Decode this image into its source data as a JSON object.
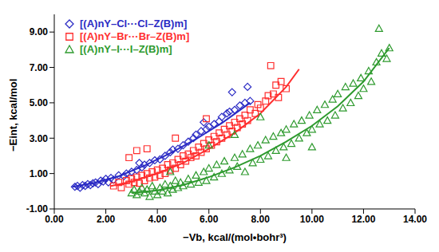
{
  "chart_data": {
    "type": "scatter",
    "xlabel": "−Vb, kcal/(mol•bohr³)",
    "ylabel": "−Eint, kcal/mol",
    "xlim": [
      0,
      14
    ],
    "ylim": [
      -1,
      10
    ],
    "xticks": [
      {
        "value": 0,
        "label": "0.00"
      },
      {
        "value": 2,
        "label": "2.00"
      },
      {
        "value": 4,
        "label": "4.00"
      },
      {
        "value": 6,
        "label": "6.00"
      },
      {
        "value": 8,
        "label": "8.00"
      },
      {
        "value": 10,
        "label": "10.00"
      },
      {
        "value": 12,
        "label": "12.00"
      },
      {
        "value": 14,
        "label": "14.00"
      }
    ],
    "yticks": [
      {
        "value": -1,
        "label": "-1.00"
      },
      {
        "value": 1,
        "label": "1.00"
      },
      {
        "value": 3,
        "label": "3.00"
      },
      {
        "value": 5,
        "label": "5.00"
      },
      {
        "value": 7,
        "label": "7.00"
      },
      {
        "value": 9,
        "label": "9.00"
      }
    ],
    "grid": false,
    "legend": "upper left",
    "series": [
      {
        "name": "[(A)nY–Cl···Cl–Z(B)m]",
        "color": "#2b2bc4",
        "marker": "diamond",
        "x": [
          0.8,
          0.9,
          1.0,
          1.1,
          1.2,
          1.3,
          1.4,
          1.5,
          1.6,
          1.7,
          1.8,
          1.9,
          2.0,
          2.1,
          2.2,
          2.3,
          2.5,
          2.7,
          2.8,
          3.0,
          3.2,
          3.4,
          3.5,
          3.7,
          3.9,
          4.1,
          4.3,
          4.5,
          4.6,
          4.8,
          5.0,
          5.2,
          5.4,
          5.5,
          5.7,
          5.9,
          6.0,
          6.2,
          6.4,
          6.5,
          6.7,
          6.8,
          7.0,
          7.2,
          7.4,
          7.6,
          6.9,
          7.5,
          5.8,
          3.3
        ],
        "values": [
          0.25,
          0.3,
          0.2,
          0.35,
          0.3,
          0.4,
          0.35,
          0.45,
          0.5,
          0.4,
          0.6,
          0.55,
          0.7,
          0.5,
          0.75,
          0.65,
          0.9,
          0.85,
          1.0,
          1.1,
          1.2,
          1.35,
          1.5,
          1.6,
          1.75,
          1.8,
          2.0,
          2.2,
          2.35,
          2.4,
          2.6,
          2.8,
          3.0,
          3.2,
          3.4,
          3.5,
          3.65,
          3.8,
          3.95,
          4.2,
          4.4,
          4.5,
          4.6,
          4.85,
          5.0,
          5.1,
          5.6,
          5.9,
          3.9,
          1.6
        ],
        "trend": {
          "x": [
            0.7,
            1.5,
            2.5,
            3.5,
            4.5,
            5.5,
            6.5,
            7.6
          ],
          "values": [
            0.25,
            0.45,
            0.85,
            1.45,
            2.15,
            2.95,
            3.85,
            5.0
          ]
        }
      },
      {
        "name": "[(A)nY–Br···Br–Z(B)m]",
        "color": "#ff2e2e",
        "marker": "square",
        "x": [
          2.3,
          2.5,
          2.6,
          2.8,
          2.9,
          3.0,
          3.1,
          3.2,
          3.3,
          3.4,
          3.5,
          3.6,
          3.7,
          3.8,
          3.9,
          4.0,
          4.1,
          4.2,
          4.3,
          4.4,
          4.5,
          4.6,
          4.7,
          4.8,
          4.9,
          5.0,
          5.1,
          5.2,
          5.3,
          5.4,
          5.5,
          5.6,
          5.7,
          5.8,
          5.9,
          6.0,
          6.1,
          6.2,
          6.3,
          6.4,
          6.5,
          6.6,
          6.7,
          6.8,
          6.9,
          7.0,
          7.1,
          7.2,
          7.3,
          7.4,
          7.5,
          7.6,
          7.8,
          7.9,
          8.0,
          8.2,
          8.3,
          8.5,
          8.6,
          8.7,
          8.8,
          9.0,
          8.4,
          3.6,
          3.2,
          2.9,
          4.7,
          5.9
        ],
        "values": [
          0.3,
          0.5,
          0.2,
          0.6,
          0.4,
          0.7,
          0.5,
          0.8,
          0.45,
          0.9,
          0.6,
          1.0,
          0.75,
          1.1,
          0.8,
          1.2,
          0.9,
          1.3,
          1.0,
          1.5,
          1.2,
          1.6,
          1.3,
          1.8,
          1.5,
          2.0,
          1.7,
          2.1,
          1.9,
          2.3,
          2.0,
          2.5,
          2.2,
          2.7,
          2.4,
          2.9,
          2.6,
          3.1,
          2.8,
          3.3,
          3.0,
          3.5,
          3.2,
          3.7,
          3.4,
          3.9,
          3.6,
          4.1,
          3.8,
          4.3,
          4.0,
          4.6,
          4.4,
          4.9,
          4.7,
          5.1,
          5.4,
          5.5,
          6.0,
          5.3,
          6.2,
          5.8,
          7.1,
          2.4,
          2.3,
          1.9,
          3.0,
          4.1
        ],
        "trend": {
          "x": [
            2.2,
            3,
            4,
            5,
            6,
            7,
            8,
            9,
            9.5
          ],
          "values": [
            0.3,
            0.55,
            1.0,
            1.6,
            2.4,
            3.3,
            4.4,
            5.9,
            6.9
          ]
        }
      },
      {
        "name": "[(A)nY–I···I–Z(B)m]",
        "color": "#2e9a2e",
        "marker": "triangle",
        "x": [
          3.0,
          3.1,
          3.2,
          3.3,
          3.4,
          3.5,
          3.6,
          3.7,
          3.8,
          3.9,
          4.0,
          4.1,
          4.2,
          4.3,
          4.4,
          4.5,
          4.6,
          4.7,
          4.8,
          4.9,
          5.0,
          5.2,
          5.3,
          5.5,
          5.6,
          5.8,
          5.9,
          6.0,
          6.2,
          6.3,
          6.5,
          6.6,
          6.8,
          7.0,
          7.1,
          7.3,
          7.4,
          7.6,
          7.7,
          7.9,
          8.0,
          8.2,
          8.3,
          8.5,
          8.6,
          8.8,
          8.9,
          9.0,
          9.2,
          9.3,
          9.5,
          9.6,
          9.8,
          9.9,
          10.0,
          10.2,
          10.3,
          10.5,
          10.6,
          10.8,
          10.9,
          11.0,
          11.2,
          11.3,
          11.5,
          11.6,
          11.8,
          11.9,
          12.0,
          12.2,
          12.3,
          12.5,
          12.6,
          12.7,
          12.9,
          13.0,
          7.0,
          6.0,
          8.0,
          9.0,
          10.0,
          4.5
        ],
        "values": [
          -0.1,
          0.1,
          -0.2,
          0.0,
          0.2,
          -0.1,
          0.1,
          -0.3,
          0.3,
          0.0,
          -0.2,
          0.2,
          0.0,
          0.4,
          -0.1,
          0.3,
          0.1,
          0.6,
          0.2,
          0.5,
          0.3,
          0.7,
          0.4,
          0.9,
          0.5,
          1.1,
          0.6,
          1.3,
          0.8,
          1.5,
          1.0,
          1.7,
          1.2,
          1.9,
          1.4,
          2.1,
          1.1,
          2.4,
          1.6,
          2.6,
          1.8,
          2.9,
          2.0,
          3.1,
          2.3,
          3.3,
          2.5,
          3.5,
          2.7,
          3.8,
          3.0,
          4.0,
          3.3,
          4.3,
          3.5,
          4.6,
          3.8,
          4.9,
          4.0,
          5.2,
          4.3,
          5.5,
          4.7,
          5.9,
          5.0,
          6.1,
          5.4,
          6.4,
          5.8,
          6.8,
          6.2,
          7.3,
          9.2,
          7.8,
          7.5,
          8.1,
          3.2,
          2.6,
          4.2,
          1.9,
          2.5,
          1.1
        ],
        "trend": {
          "x": [
            3,
            4,
            5,
            6,
            7,
            8,
            9,
            10,
            11,
            12,
            13
          ],
          "values": [
            -0.1,
            0.05,
            0.35,
            0.8,
            1.35,
            2.0,
            2.8,
            3.7,
            4.8,
            6.2,
            8.1
          ]
        }
      }
    ]
  }
}
